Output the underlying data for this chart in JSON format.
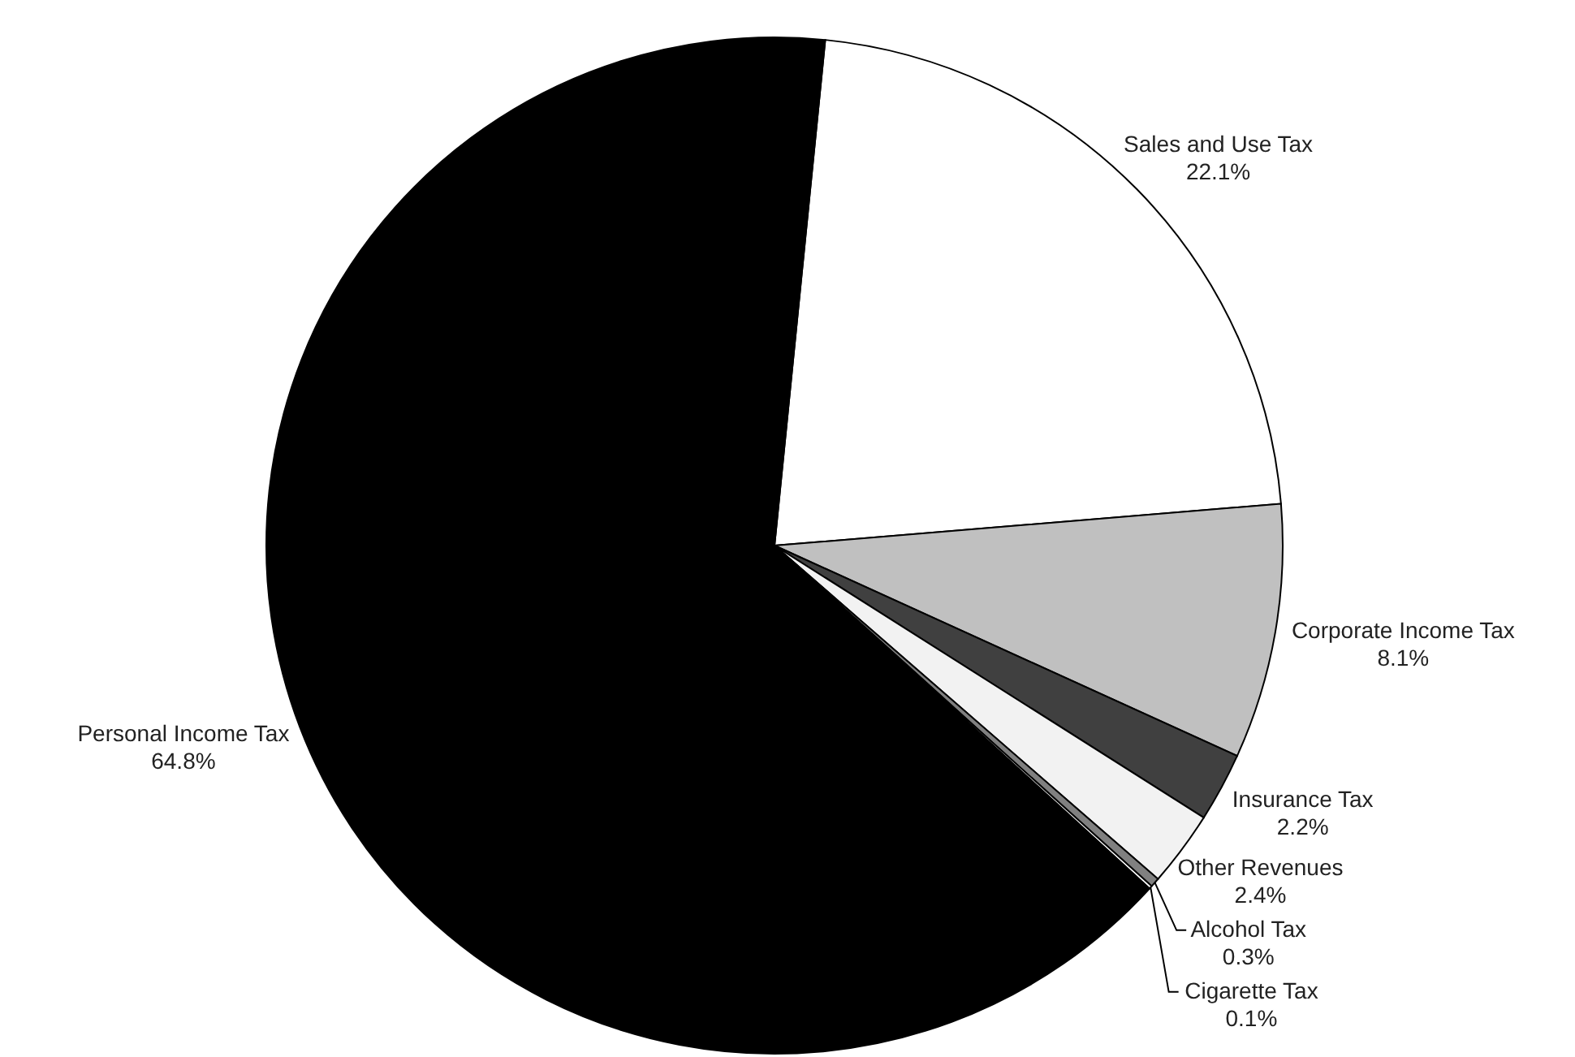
{
  "chart_data": {
    "type": "pie",
    "categories": [
      "Sales and Use Tax",
      "Corporate Income Tax",
      "Insurance Tax",
      "Other Revenues",
      "Alcohol Tax",
      "Cigarette Tax",
      "Personal Income Tax"
    ],
    "values": [
      22.1,
      8.1,
      2.2,
      2.4,
      0.3,
      0.1,
      64.8
    ],
    "value_labels": [
      "22.1%",
      "8.1%",
      "2.2%",
      "2.4%",
      "0.3%",
      "0.1%",
      "64.8%"
    ],
    "colors": [
      "#ffffff",
      "#c0c0c0",
      "#404040",
      "#f2f2f2",
      "#808080",
      "#ffffff",
      "#000000"
    ]
  }
}
